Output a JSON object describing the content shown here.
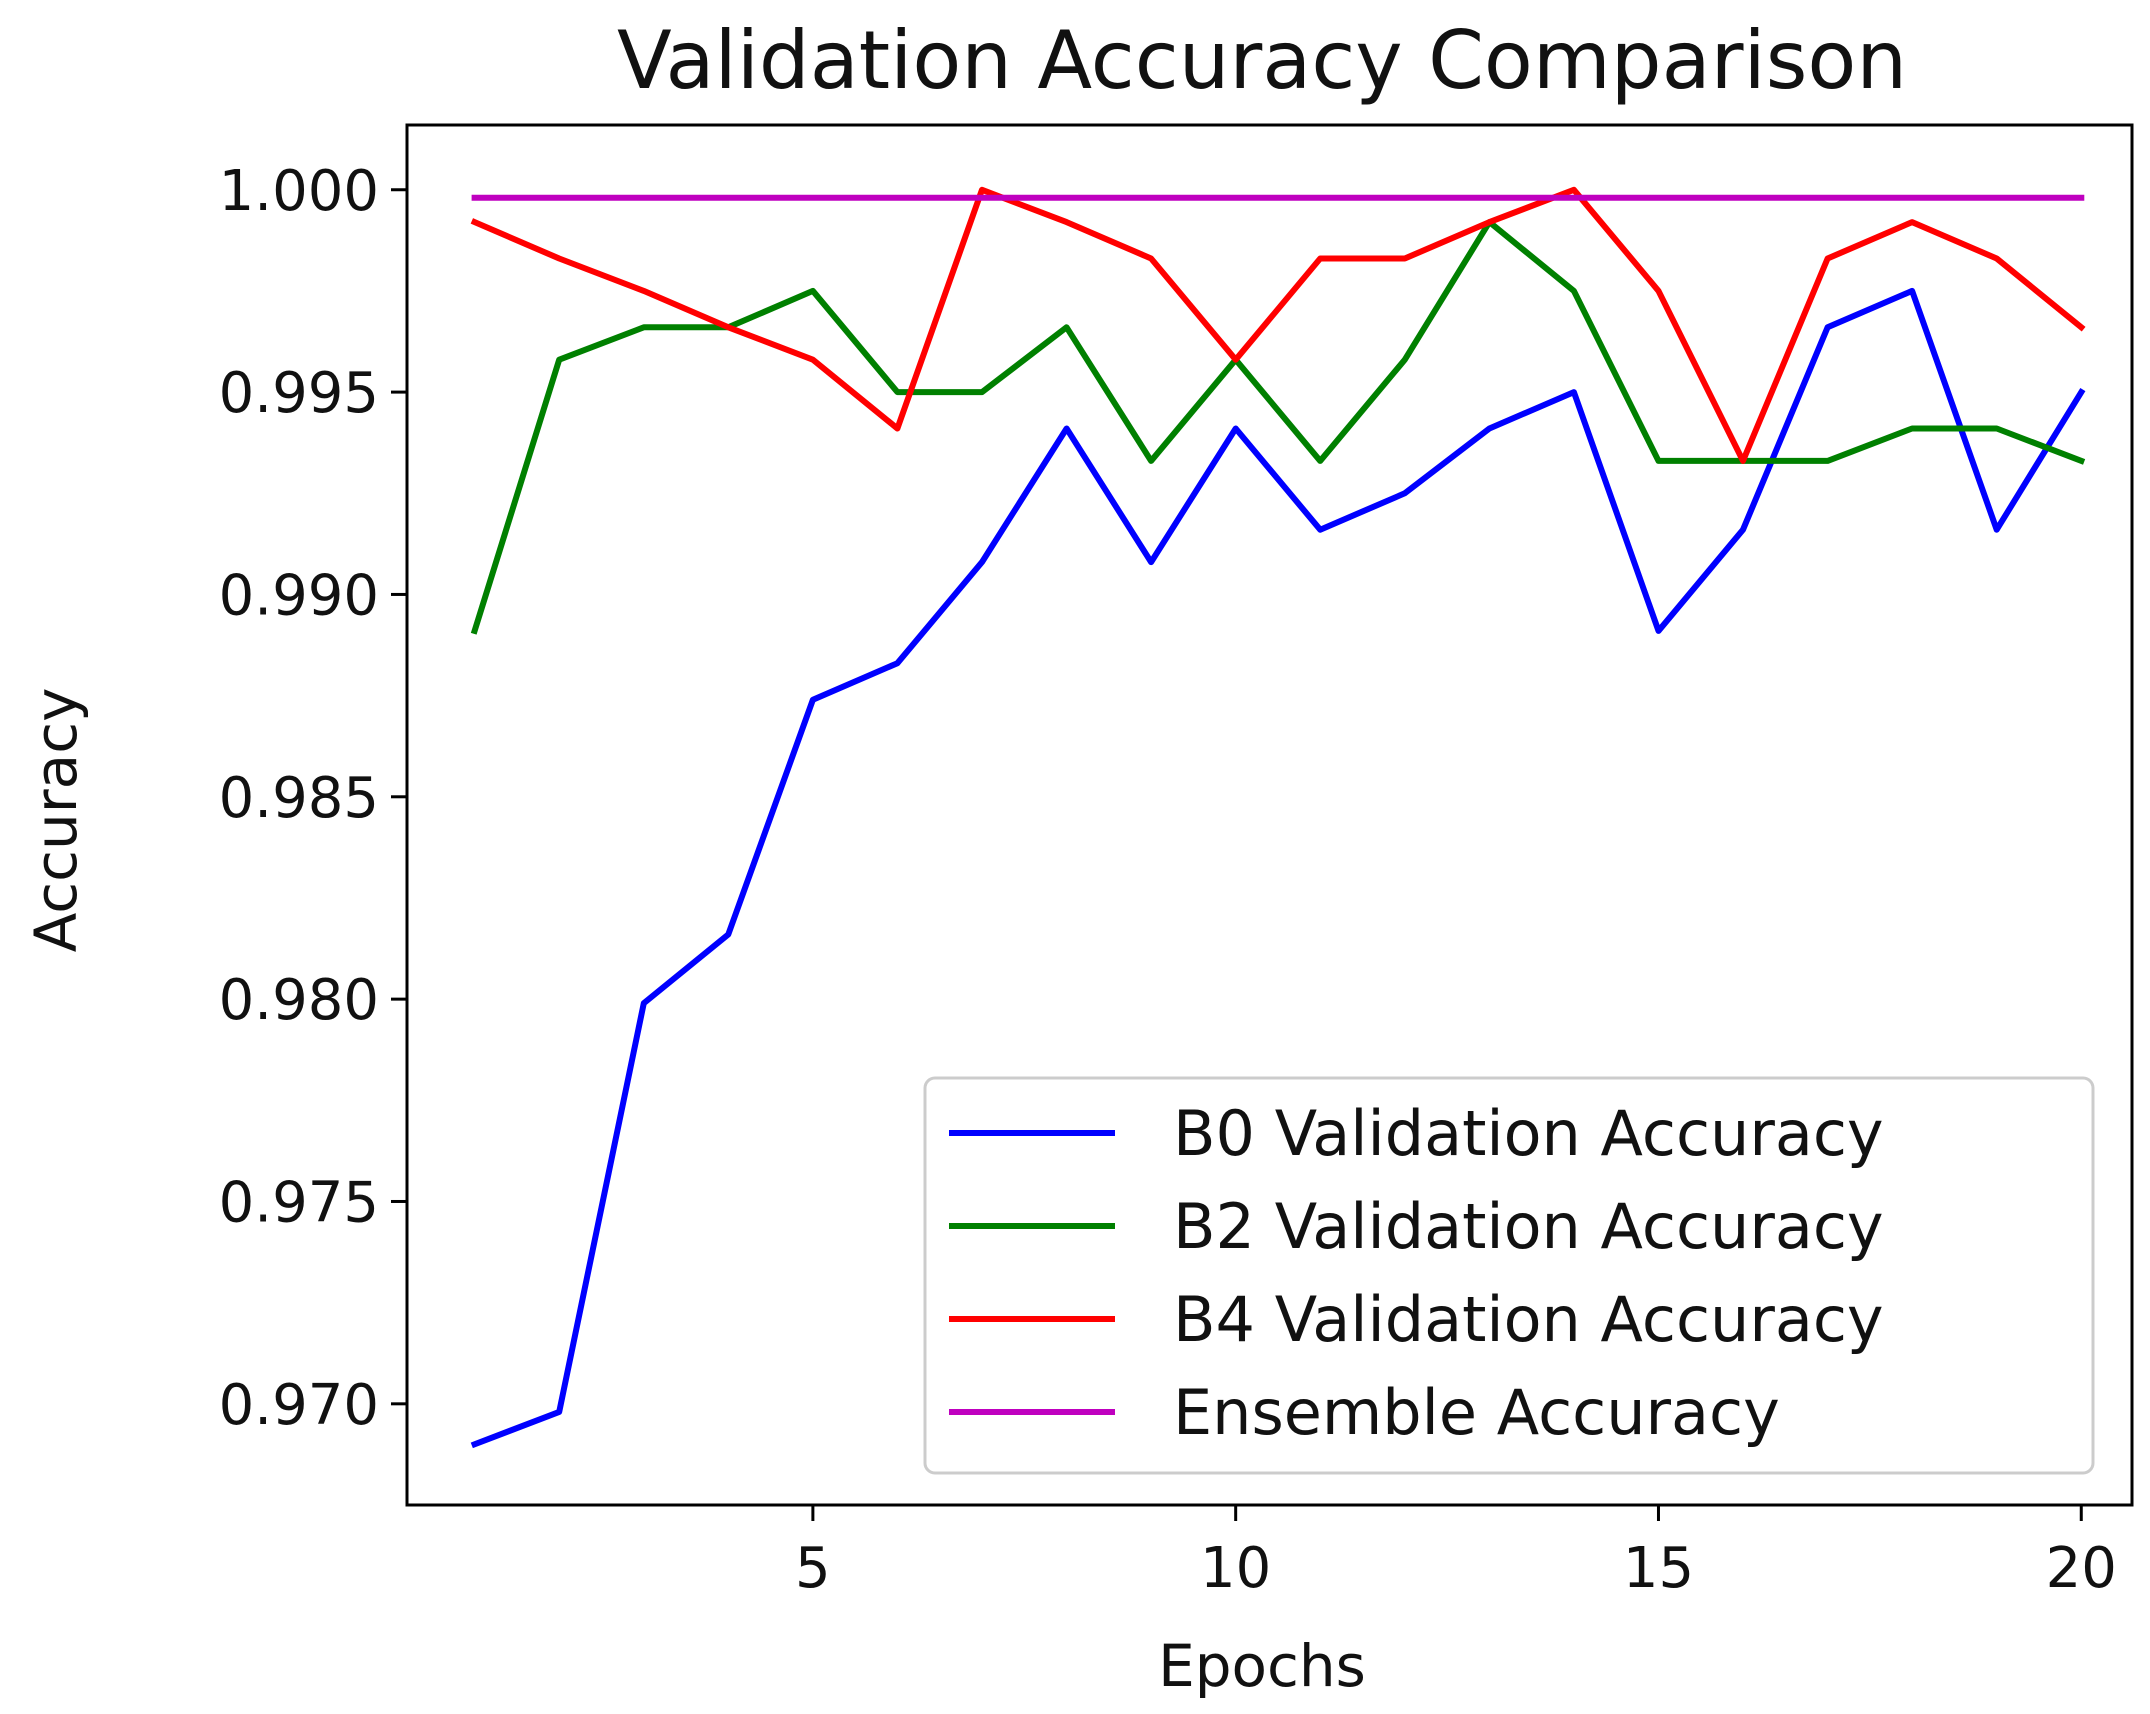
{
  "chart_data": {
    "type": "line",
    "title": "Validation Accuracy Comparison",
    "xlabel": "Epochs",
    "ylabel": "Accuracy",
    "xlim": [
      0.2,
      20.6
    ],
    "ylim": [
      0.9675,
      1.0016
    ],
    "x": [
      1,
      2,
      3,
      4,
      5,
      6,
      7,
      8,
      9,
      10,
      11,
      12,
      13,
      14,
      15,
      16,
      17,
      18,
      19,
      20
    ],
    "xticks": [
      5,
      10,
      15,
      20
    ],
    "xtick_labels": [
      "5",
      "10",
      "15",
      "20"
    ],
    "yticks": [
      0.97,
      0.975,
      0.98,
      0.985,
      0.99,
      0.995,
      1.0
    ],
    "ytick_labels": [
      "0.970",
      "0.975",
      "0.980",
      "0.985",
      "0.990",
      "0.995",
      "1.000"
    ],
    "grid": false,
    "legend_position": "lower-right",
    "series": [
      {
        "name": "B0 Validation Accuracy",
        "color": "#0000ff",
        "values": [
          0.969,
          0.9698,
          0.9799,
          0.9816,
          0.9874,
          0.9883,
          0.9908,
          0.9941,
          0.9908,
          0.9941,
          0.9916,
          0.9925,
          0.9941,
          0.995,
          0.9891,
          0.9916,
          0.9966,
          0.9975,
          0.9916,
          0.995
        ]
      },
      {
        "name": "B2 Validation Accuracy",
        "color": "#008000",
        "values": [
          0.9891,
          0.9958,
          0.9966,
          0.9966,
          0.9975,
          0.995,
          0.995,
          0.9966,
          0.9933,
          0.9958,
          0.9933,
          0.9958,
          0.9992,
          0.9975,
          0.9933,
          0.9933,
          0.9933,
          0.9941,
          0.9941,
          0.9933
        ]
      },
      {
        "name": "B4 Validation Accuracy",
        "color": "#ff0000",
        "values": [
          0.9992,
          0.9983,
          0.9975,
          0.9966,
          0.9958,
          0.9941,
          1.0,
          0.9992,
          0.9983,
          0.9958,
          0.9983,
          0.9983,
          0.9992,
          1.0,
          0.9975,
          0.9933,
          0.9983,
          0.9992,
          0.9983,
          0.9966
        ]
      },
      {
        "name": "Ensemble Accuracy",
        "color": "#bf00bf",
        "values": [
          0.9998,
          0.9998,
          0.9998,
          0.9998,
          0.9998,
          0.9998,
          0.9998,
          0.9998,
          0.9998,
          0.9998,
          0.9998,
          0.9998,
          0.9998,
          0.9998,
          0.9998,
          0.9998,
          0.9998,
          0.9998,
          0.9998,
          0.9998
        ]
      }
    ]
  }
}
